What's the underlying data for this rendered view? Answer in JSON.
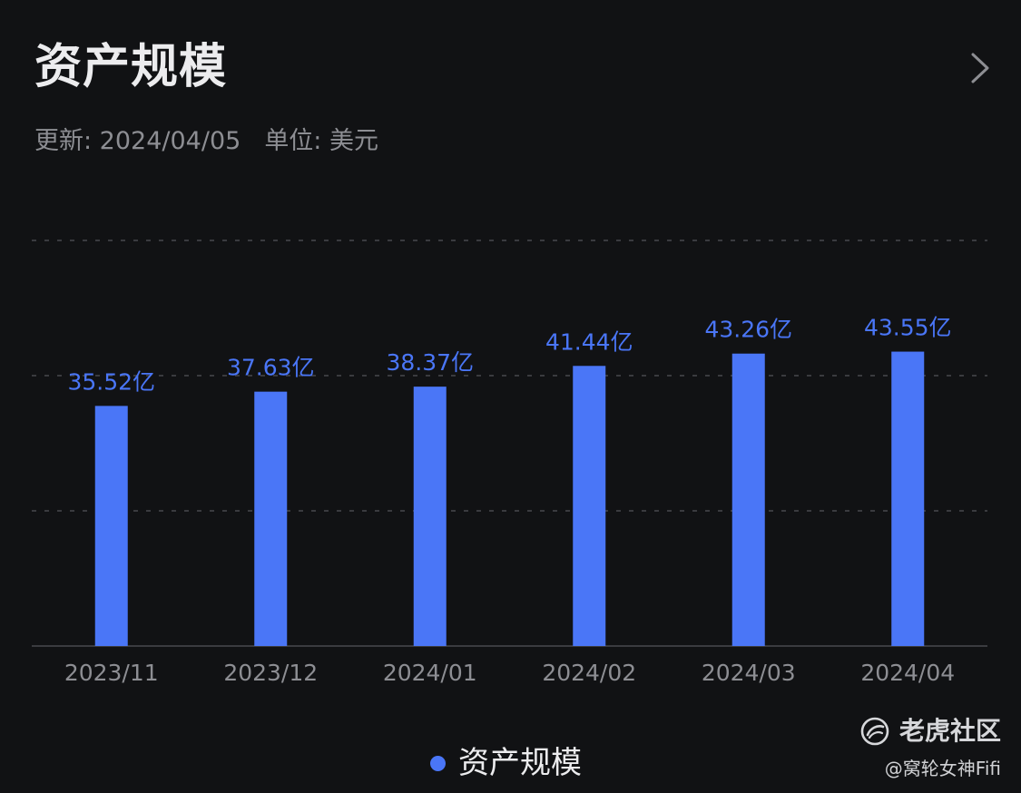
{
  "header": {
    "title": "资产规模",
    "more_icon": "chevron-right-icon"
  },
  "meta": {
    "updated": "更新: 2024/04/05",
    "unit": "单位: 美元"
  },
  "colors": {
    "background": "#111214",
    "bar": "#4a76f7",
    "value_label": "#4a76f7",
    "grid": "#3a3b3f",
    "axis": "#3a3b3f",
    "tick_label": "#8d8e93"
  },
  "chart_data": {
    "type": "bar",
    "title": "资产规模",
    "categories": [
      "2023/11",
      "2023/12",
      "2024/01",
      "2024/02",
      "2024/03",
      "2024/04"
    ],
    "series": [
      {
        "name": "资产规模",
        "values": [
          35.52,
          37.63,
          38.37,
          41.44,
          43.26,
          43.55
        ],
        "value_labels": [
          "35.52亿",
          "37.63亿",
          "38.37亿",
          "41.44亿",
          "43.26亿",
          "43.55亿"
        ]
      }
    ],
    "ylim": [
      0,
      60
    ],
    "grid": true,
    "grid_style": "dashed",
    "legend_position": "bottom-center"
  },
  "legend": {
    "label": "资产规模"
  },
  "watermark": {
    "brand": "老虎社区",
    "handle": "@窝轮女神Fifi",
    "logo_icon": "tiger-logo-icon"
  }
}
